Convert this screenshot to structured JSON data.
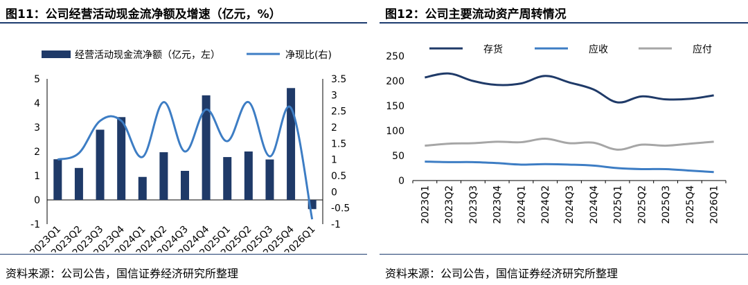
{
  "chart_data": [
    {
      "type": "bar+line",
      "title": "图11：公司经营活动现金流净额及增速（亿元，%）",
      "source": "资料来源：公司公告，国信证券经济研究所整理",
      "categories": [
        "2023Q1",
        "2023Q2",
        "2023Q3",
        "2023Q4",
        "2024Q1",
        "2024Q2",
        "2024Q3",
        "2024Q4",
        "2025Q1",
        "2025Q2",
        "2025Q3",
        "2025Q4",
        "2026Q1"
      ],
      "series": [
        {
          "name": "经营活动现金流净额（亿元，左）",
          "type": "bar",
          "axis": "left",
          "values": [
            1.68,
            1.32,
            2.9,
            3.42,
            0.95,
            1.97,
            1.2,
            4.32,
            1.77,
            2.0,
            1.67,
            4.62,
            -0.38
          ]
        },
        {
          "name": "净现比(右)",
          "type": "line",
          "axis": "right",
          "values": [
            1.0,
            1.2,
            2.2,
            2.2,
            1.08,
            2.78,
            1.25,
            2.55,
            1.57,
            2.78,
            1.1,
            2.6,
            -0.85
          ]
        }
      ],
      "ylim_left": [
        -1,
        5
      ],
      "yticks_left": [
        "-1",
        "0",
        "1",
        "2",
        "3",
        "4",
        "5"
      ],
      "ylim_right": [
        -1,
        3.5
      ],
      "yticks_right": [
        "-1",
        "-0.5",
        "0",
        "0.5",
        "1",
        "1.5",
        "2",
        "2.5",
        "3",
        "3.5"
      ],
      "colors": {
        "bar": "#1f3a68",
        "line": "#3d7dc4"
      },
      "legend": "top"
    },
    {
      "type": "line",
      "title": "图12：公司主要流动资产周转情况",
      "source": "资料来源：公司公告，国信证券经济研究所整理",
      "categories": [
        "2023Q1",
        "2023Q2",
        "2023Q3",
        "2023Q4",
        "2024Q1",
        "2024Q2",
        "2024Q3",
        "2024Q4",
        "2025Q1",
        "2025Q2",
        "2025Q3",
        "2025Q4",
        "2026Q1"
      ],
      "series": [
        {
          "name": "存货",
          "values": [
            207,
            215,
            200,
            192,
            195,
            210,
            197,
            183,
            157,
            169,
            163,
            164,
            171
          ]
        },
        {
          "name": "应收",
          "values": [
            38,
            37,
            37,
            35,
            32,
            33,
            32,
            30,
            25,
            23,
            23,
            20,
            17
          ]
        },
        {
          "name": "应付",
          "values": [
            70,
            74,
            75,
            78,
            77,
            84,
            75,
            76,
            62,
            72,
            70,
            74,
            78
          ]
        }
      ],
      "ylim": [
        0,
        250
      ],
      "yticks": [
        "0",
        "50",
        "100",
        "150",
        "200",
        "250"
      ],
      "colors": {
        "存货": "#1f3a68",
        "应收": "#3d7dc4",
        "应付": "#a6a6a6"
      },
      "legend": "top"
    }
  ]
}
